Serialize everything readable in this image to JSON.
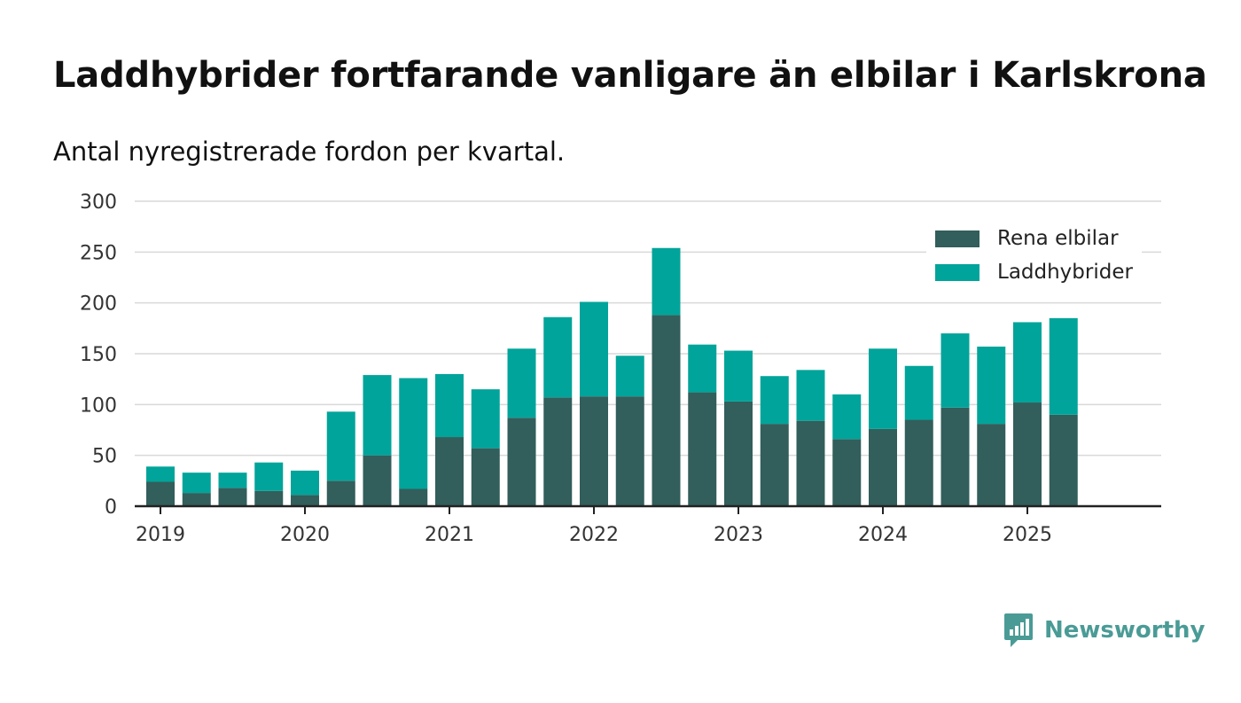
{
  "title": "Laddhybrider fortfarande vanligare än elbilar i Karlskrona",
  "subtitle": "Antal nyregistrerade fordon per kvartal.",
  "brand": {
    "name": "Newsworthy",
    "color": "#4a9b96"
  },
  "colors": {
    "elbilar": "#325e5b",
    "laddhybrider": "#00a49a",
    "axis": "#222222",
    "grid": "#d9d9d9"
  },
  "chart_data": {
    "type": "bar",
    "stacked": true,
    "title": "Laddhybrider fortfarande vanligare än elbilar i Karlskrona",
    "xlabel": "",
    "ylabel": "",
    "ylim": [
      0,
      300
    ],
    "yticks": [
      "0",
      "50",
      "100",
      "150",
      "200",
      "250",
      "300"
    ],
    "xtick_labels": [
      "2019",
      "2020",
      "2021",
      "2022",
      "2023",
      "2024",
      "2025"
    ],
    "legend_position": "top-right",
    "categories": [
      "2019 Q1",
      "2019 Q2",
      "2019 Q3",
      "2019 Q4",
      "2020 Q1",
      "2020 Q2",
      "2020 Q3",
      "2020 Q4",
      "2021 Q1",
      "2021 Q2",
      "2021 Q3",
      "2021 Q4",
      "2022 Q1",
      "2022 Q2",
      "2022 Q3",
      "2022 Q4",
      "2023 Q1",
      "2023 Q2",
      "2023 Q3",
      "2023 Q4",
      "2024 Q1",
      "2024 Q2",
      "2024 Q3",
      "2024 Q4",
      "2025 Q1",
      "2025 Q2",
      "2025 Q3"
    ],
    "series": [
      {
        "name": "Rena elbilar",
        "values": [
          24,
          13,
          18,
          15,
          11,
          25,
          50,
          17,
          68,
          57,
          87,
          107,
          108,
          108,
          188,
          112,
          103,
          81,
          84,
          66,
          76,
          85,
          97,
          81,
          102,
          90,
          0
        ]
      },
      {
        "name": "Laddhybrider",
        "values": [
          15,
          20,
          15,
          28,
          24,
          68,
          79,
          109,
          62,
          58,
          68,
          79,
          93,
          40,
          66,
          47,
          50,
          47,
          50,
          44,
          79,
          53,
          73,
          76,
          79,
          95,
          0
        ]
      }
    ]
  }
}
